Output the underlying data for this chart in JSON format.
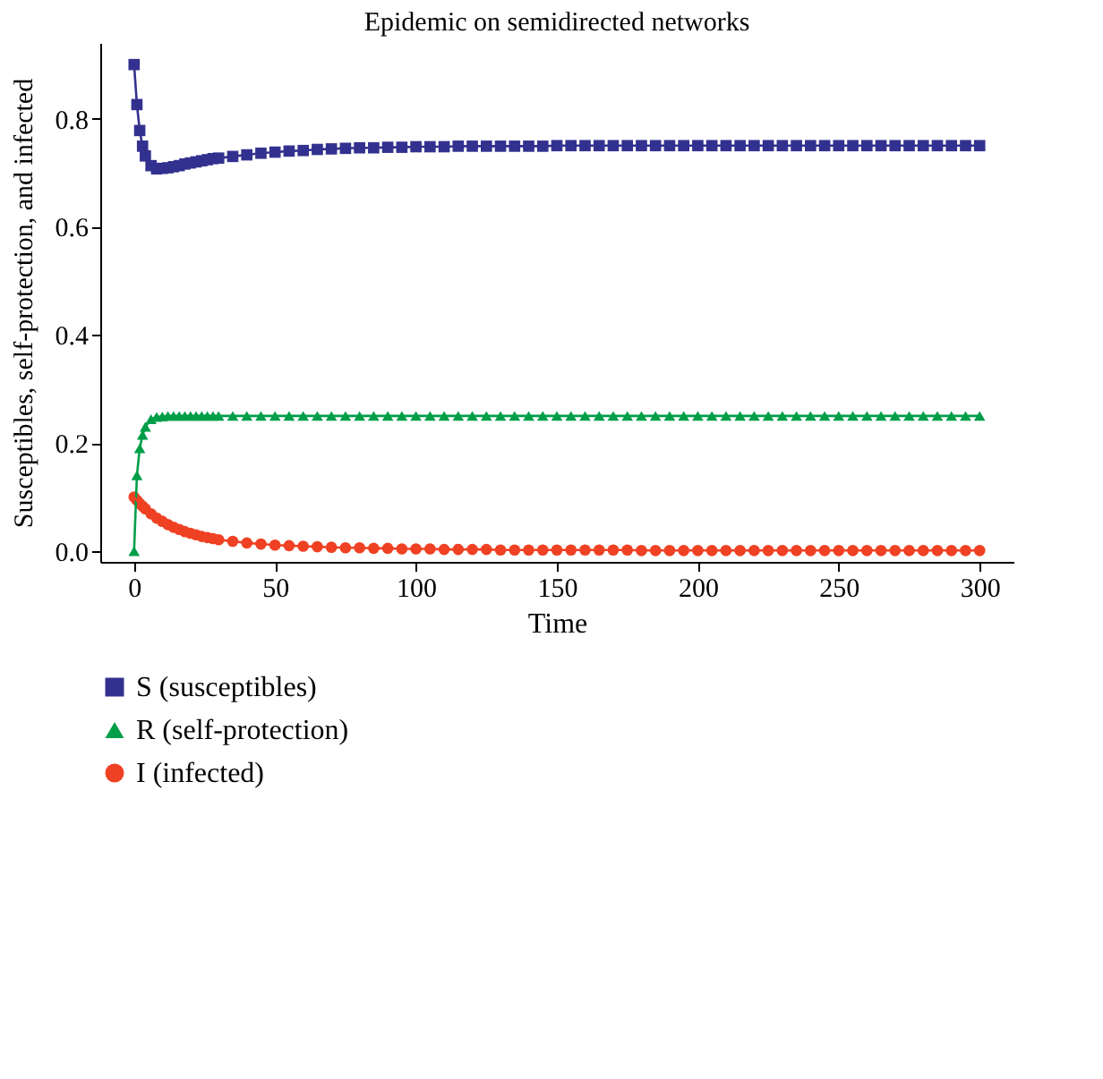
{
  "chart_data": {
    "type": "line",
    "title": "Epidemic on semidirected networks",
    "xlabel": "Time",
    "ylabel": "Susceptibles, self-protection, and infected",
    "x": [
      0,
      1,
      2,
      3,
      4,
      6,
      8,
      10,
      12,
      14,
      16,
      18,
      20,
      22,
      24,
      26,
      28,
      30,
      35,
      40,
      45,
      50,
      55,
      60,
      65,
      70,
      75,
      80,
      85,
      90,
      95,
      100,
      105,
      110,
      115,
      120,
      125,
      130,
      135,
      140,
      145,
      150,
      155,
      160,
      165,
      170,
      175,
      180,
      185,
      190,
      195,
      200,
      205,
      210,
      215,
      220,
      225,
      230,
      235,
      240,
      245,
      250,
      255,
      260,
      265,
      270,
      275,
      280,
      285,
      290,
      295,
      300
    ],
    "series": [
      {
        "name": "S (susceptibles)",
        "color": "#33318f",
        "marker": "square",
        "values": [
          0.9,
          0.826,
          0.778,
          0.749,
          0.731,
          0.713,
          0.707,
          0.708,
          0.709,
          0.711,
          0.713,
          0.716,
          0.718,
          0.72,
          0.722,
          0.724,
          0.726,
          0.727,
          0.73,
          0.733,
          0.736,
          0.738,
          0.74,
          0.741,
          0.743,
          0.744,
          0.745,
          0.746,
          0.746,
          0.747,
          0.747,
          0.748,
          0.748,
          0.748,
          0.749,
          0.749,
          0.749,
          0.749,
          0.749,
          0.749,
          0.749,
          0.75,
          0.75,
          0.75,
          0.75,
          0.75,
          0.75,
          0.75,
          0.75,
          0.75,
          0.75,
          0.75,
          0.75,
          0.75,
          0.75,
          0.75,
          0.75,
          0.75,
          0.75,
          0.75,
          0.75,
          0.75,
          0.75,
          0.75,
          0.75,
          0.75,
          0.75,
          0.75,
          0.75,
          0.75,
          0.75,
          0.75
        ]
      },
      {
        "name": "R (self-protection)",
        "color": "#009e49",
        "marker": "triangle",
        "values": [
          0,
          0.14,
          0.19,
          0.215,
          0.23,
          0.244,
          0.248,
          0.249,
          0.25,
          0.25,
          0.25,
          0.25,
          0.25,
          0.25,
          0.25,
          0.25,
          0.25,
          0.25,
          0.25,
          0.25,
          0.25,
          0.25,
          0.25,
          0.25,
          0.25,
          0.25,
          0.25,
          0.25,
          0.25,
          0.25,
          0.25,
          0.25,
          0.25,
          0.25,
          0.25,
          0.25,
          0.25,
          0.25,
          0.25,
          0.25,
          0.25,
          0.25,
          0.25,
          0.25,
          0.25,
          0.25,
          0.25,
          0.25,
          0.25,
          0.25,
          0.25,
          0.25,
          0.25,
          0.25,
          0.25,
          0.25,
          0.25,
          0.25,
          0.25,
          0.25,
          0.25,
          0.25,
          0.25,
          0.25,
          0.25,
          0.25,
          0.25,
          0.25,
          0.25,
          0.25,
          0.25,
          0.25
        ]
      },
      {
        "name": "I (infected)",
        "color": "#ef4123",
        "marker": "circle",
        "values": [
          0.1,
          0.094,
          0.088,
          0.083,
          0.078,
          0.069,
          0.061,
          0.055,
          0.049,
          0.044,
          0.04,
          0.036,
          0.033,
          0.03,
          0.027,
          0.025,
          0.023,
          0.021,
          0.018,
          0.015,
          0.013,
          0.011,
          0.01,
          0.009,
          0.008,
          0.007,
          0.006,
          0.006,
          0.005,
          0.005,
          0.004,
          0.004,
          0.004,
          0.003,
          0.003,
          0.003,
          0.003,
          0.002,
          0.002,
          0.002,
          0.002,
          0.002,
          0.002,
          0.002,
          0.002,
          0.002,
          0.002,
          0.001,
          0.001,
          0.001,
          0.001,
          0.001,
          0.001,
          0.001,
          0.001,
          0.001,
          0.001,
          0.001,
          0.001,
          0.001,
          0.001,
          0.001,
          0.001,
          0.001,
          0.001,
          0.001,
          0.001,
          0.001,
          0.001,
          0.001,
          0.001,
          0.001
        ]
      }
    ],
    "xlim": [
      -12,
      312
    ],
    "xticks": [
      0,
      50,
      100,
      150,
      200,
      250,
      300
    ],
    "ylim": [
      -0.02,
      0.94
    ],
    "yticks": [
      {
        "value": 0,
        "label": "0.0"
      },
      {
        "value": 0.2,
        "label": "0.2"
      },
      {
        "value": 0.4,
        "label": "0.4"
      },
      {
        "value": 0.6,
        "label": "0.6"
      },
      {
        "value": 0.8,
        "label": "0.8"
      }
    ],
    "grid": false,
    "legend": "bottom left",
    "line_style": "solid"
  }
}
